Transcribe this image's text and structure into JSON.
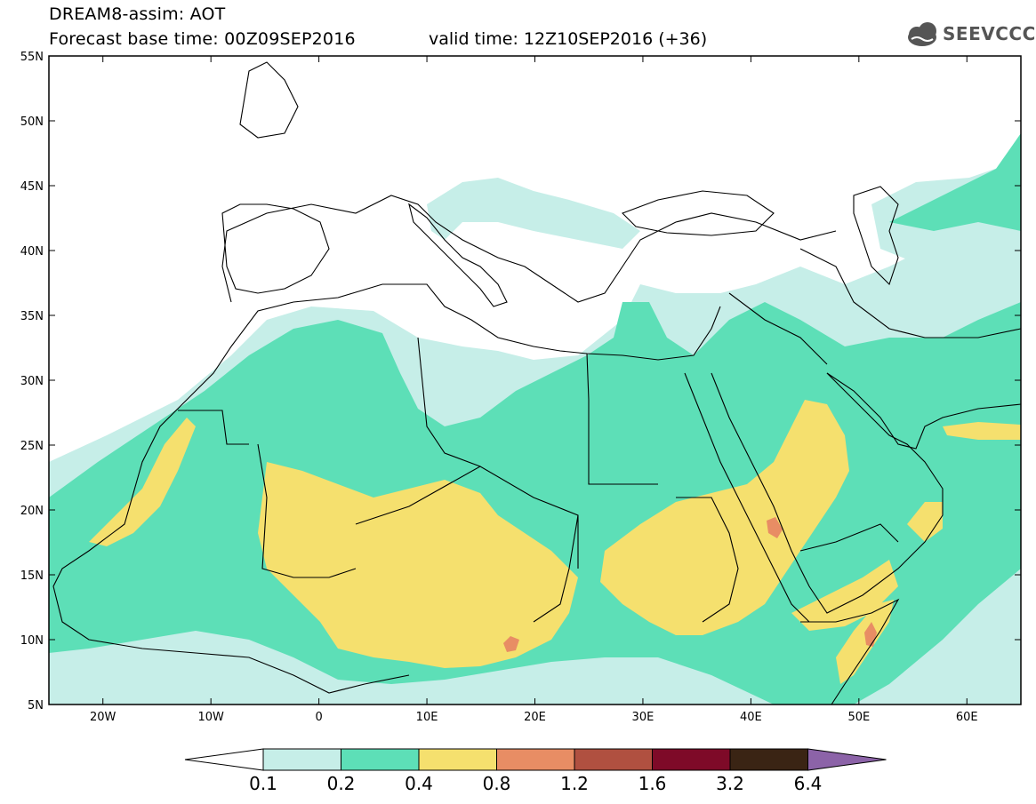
{
  "title": {
    "line1": "DREAM8-assim: AOT",
    "line2": "Forecast base time: 00Z09SEP2016",
    "valid": "valid time: 12Z10SEP2016 (+36)"
  },
  "logo": {
    "text": "SEEVCCC",
    "icon": "cloud-icon"
  },
  "map": {
    "lon_range": [
      -25,
      65
    ],
    "lat_range": [
      5,
      55
    ],
    "lat_ticks": [
      "55N",
      "50N",
      "45N",
      "40N",
      "35N",
      "30N",
      "25N",
      "20N",
      "15N",
      "10N",
      "5N"
    ],
    "lon_ticks": [
      "20W",
      "10W",
      "0",
      "10E",
      "20E",
      "30E",
      "40E",
      "50E",
      "60E"
    ],
    "variable": "AOT"
  },
  "legend": {
    "labels": [
      "0.1",
      "0.2",
      "0.4",
      "0.8",
      "1.2",
      "1.6",
      "3.2",
      "6.4"
    ],
    "colors": [
      "#c6eee8",
      "#5ddfb7",
      "#f5e06e",
      "#e88d64",
      "#b05040",
      "#7e0a28",
      "#3a2414",
      "#8c63a8"
    ]
  }
}
